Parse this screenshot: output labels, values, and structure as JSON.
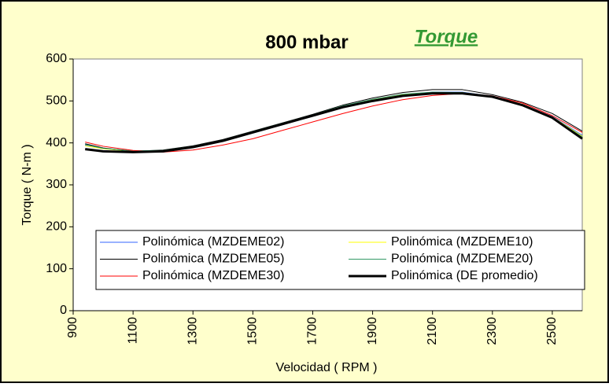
{
  "chart_data": {
    "type": "line",
    "title": "800 mbar",
    "annotation": "Torque",
    "x_label": "Velocidad ( RPM )",
    "y_label": "Torque ( N-m )",
    "x": [
      940,
      1000,
      1100,
      1200,
      1300,
      1400,
      1500,
      1600,
      1700,
      1800,
      1900,
      2000,
      2100,
      2200,
      2300,
      2400,
      2500,
      2600
    ],
    "series": [
      {
        "name": "Polinómica (MZDEME02)",
        "color": "#3366ff",
        "width": 1,
        "values": [
          395,
          387,
          380,
          381,
          391,
          406,
          426,
          446,
          466,
          487,
          503,
          515,
          521,
          521,
          511,
          492,
          463,
          418
        ]
      },
      {
        "name": "Polinómica (MZDEME10)",
        "color": "#ffff00",
        "width": 1,
        "values": [
          393,
          386,
          380,
          381,
          391,
          406,
          426,
          446,
          466,
          487,
          503,
          515,
          520,
          520,
          511,
          492,
          462,
          416
        ]
      },
      {
        "name": "Polinómica (MZDEME05)",
        "color": "#000000",
        "width": 1,
        "values": [
          398,
          388,
          380,
          383,
          393,
          408,
          428,
          448,
          468,
          490,
          507,
          520,
          527,
          527,
          515,
          497,
          470,
          428
        ]
      },
      {
        "name": "Polinómica (MZDEME20)",
        "color": "#339966",
        "width": 1,
        "values": [
          396,
          387,
          381,
          382,
          392,
          407,
          427,
          447,
          467,
          488,
          504,
          516,
          521,
          520,
          511,
          491,
          461,
          414
        ]
      },
      {
        "name": "Polinómica (MZDEME30)",
        "color": "#ff0000",
        "width": 1,
        "values": [
          402,
          392,
          382,
          378,
          383,
          395,
          410,
          430,
          450,
          470,
          488,
          503,
          513,
          518,
          512,
          495,
          465,
          425
        ]
      },
      {
        "name": "Polinómica (DE promedio)",
        "color": "#000000",
        "width": 3,
        "values": [
          385,
          380,
          378,
          380,
          390,
          405,
          425,
          445,
          465,
          485,
          500,
          512,
          518,
          518,
          510,
          490,
          460,
          410
        ]
      }
    ],
    "xlim": [
      900,
      2600
    ],
    "xticks": [
      900,
      1100,
      1300,
      1500,
      1700,
      1900,
      2100,
      2300,
      2500
    ],
    "ylim": [
      0,
      600
    ],
    "yticks": [
      0,
      100,
      200,
      300,
      400,
      500,
      600
    ]
  }
}
